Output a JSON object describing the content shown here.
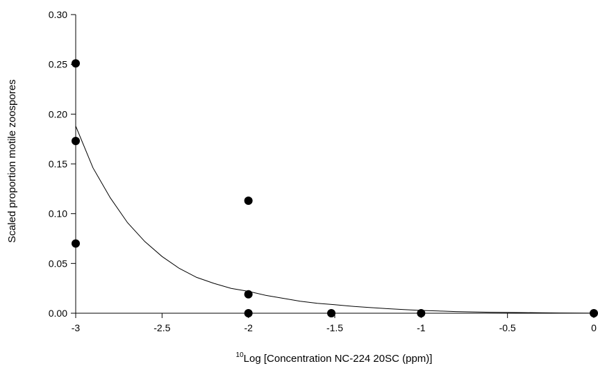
{
  "chart_data": {
    "type": "scatter",
    "title": "",
    "xlabel_superscript": "10",
    "xlabel": "Log [Concentration NC-224 20SC (ppm)]",
    "ylabel": "Scaled proportion motile zoospores",
    "xlim": [
      -3,
      0
    ],
    "ylim": [
      0,
      0.3
    ],
    "x_ticks": [
      -3,
      -2.5,
      -2,
      -1.5,
      -1,
      -0.5,
      0
    ],
    "x_tick_labels": [
      "-3",
      "-2.5",
      "-2",
      "-1.5",
      "-1",
      "-0.5",
      "0"
    ],
    "y_ticks": [
      0,
      0.05,
      0.1,
      0.15,
      0.2,
      0.25,
      0.3
    ],
    "y_tick_labels": [
      "0.00",
      "0.05",
      "0.10",
      "0.15",
      "0.20",
      "0.25",
      "0.30"
    ],
    "grid": false,
    "legend": "none",
    "points": [
      {
        "x": -3,
        "y": 0.251
      },
      {
        "x": -3,
        "y": 0.173
      },
      {
        "x": -3,
        "y": 0.07
      },
      {
        "x": -2,
        "y": 0.113
      },
      {
        "x": -2,
        "y": 0.019
      },
      {
        "x": -2,
        "y": 0.0
      },
      {
        "x": -1.52,
        "y": 0.0
      },
      {
        "x": -1,
        "y": 0.0
      },
      {
        "x": 0,
        "y": 0.0
      }
    ],
    "fit_curve": {
      "x": [
        -3,
        -2.9,
        -2.8,
        -2.7,
        -2.6,
        -2.5,
        -2.4,
        -2.3,
        -2.2,
        -2.1,
        -2,
        -1.9,
        -1.8,
        -1.7,
        -1.6,
        -1.5,
        -1.4,
        -1.3,
        -1.2,
        -1.1,
        -1,
        -0.9,
        -0.8,
        -0.7,
        -0.6,
        -0.5,
        -0.4,
        -0.3,
        -0.2,
        -0.1,
        0
      ],
      "y": [
        0.188,
        0.146,
        0.116,
        0.091,
        0.072,
        0.057,
        0.045,
        0.036,
        0.03,
        0.025,
        0.022,
        0.018,
        0.015,
        0.012,
        0.01,
        0.0085,
        0.007,
        0.0058,
        0.0046,
        0.0036,
        0.0028,
        0.0022,
        0.0017,
        0.0013,
        0.001,
        0.0008,
        0.0006,
        0.0004,
        0.0003,
        0.0002,
        0.0001
      ]
    },
    "colors": {
      "points": "#000000",
      "curve": "#000000",
      "axes": "#000000"
    }
  }
}
